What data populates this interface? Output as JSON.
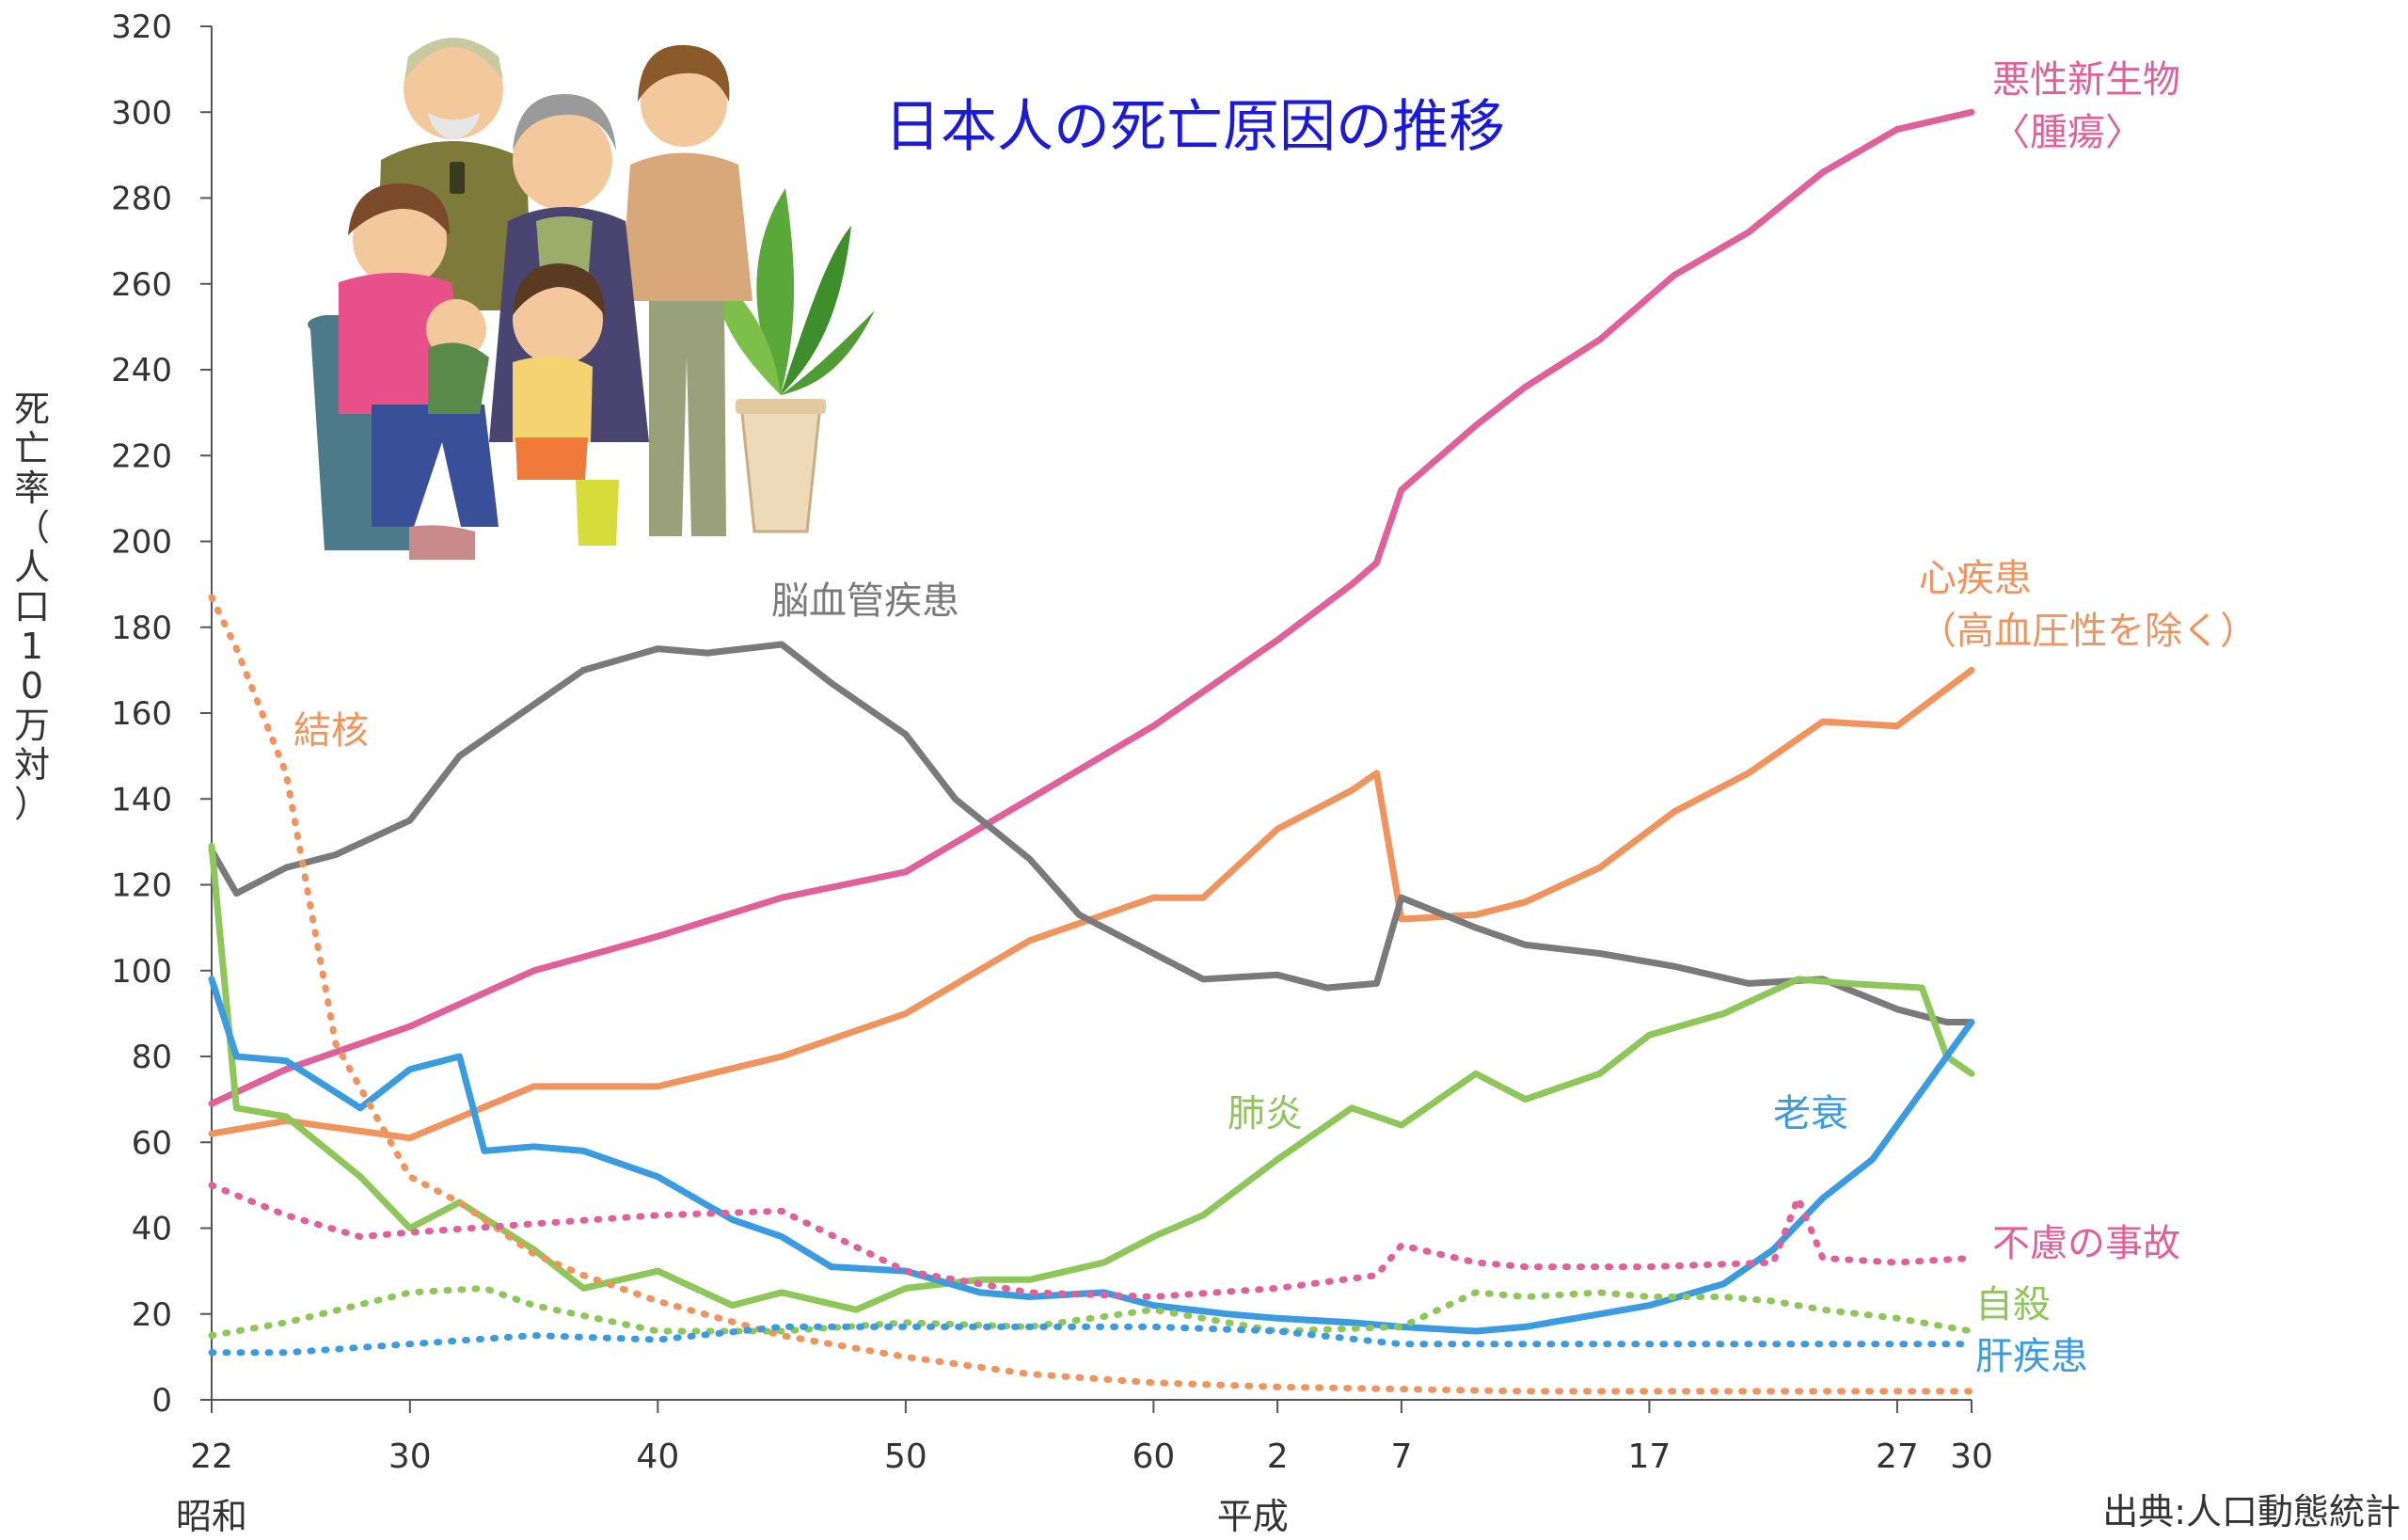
{
  "chart_data": {
    "type": "line",
    "title": "日本人の死亡原因の推移",
    "ylabel": "死亡率（人口10万対）",
    "source": "出典:人口動態統計",
    "ylim": [
      0,
      320
    ],
    "xlim": [
      1947,
      2018
    ],
    "grid": false,
    "legend": "inline labels at line ends",
    "y_ticks": [
      0,
      20,
      40,
      60,
      80,
      100,
      120,
      140,
      160,
      180,
      200,
      220,
      240,
      260,
      280,
      300,
      320
    ],
    "x_ticks": [
      {
        "label": "22",
        "year": 1947
      },
      {
        "label": "30",
        "year": 1955
      },
      {
        "label": "40",
        "year": 1965
      },
      {
        "label": "50",
        "year": 1975
      },
      {
        "label": "60",
        "year": 1985
      },
      {
        "label": "2",
        "year": 1990
      },
      {
        "label": "7",
        "year": 1995
      },
      {
        "label": "17",
        "year": 2005
      },
      {
        "label": "27",
        "year": 2015
      },
      {
        "label": "30",
        "year": 2018
      }
    ],
    "eras": [
      {
        "label": "昭和",
        "year": 1947
      },
      {
        "label": "平成",
        "year": 1989
      }
    ],
    "series": [
      {
        "name": "悪性新生物〈腫瘍〉",
        "label_lines": [
          "悪性新生物",
          "〈腫瘍〉"
        ],
        "color": "#e0609a",
        "dash": false,
        "x": [
          1947,
          1950,
          1955,
          1960,
          1965,
          1970,
          1975,
          1980,
          1985,
          1990,
          1993,
          1994,
          1995,
          1998,
          2000,
          2003,
          2006,
          2009,
          2012,
          2015,
          2018
        ],
        "y": [
          69,
          77,
          87,
          100,
          108,
          117,
          123,
          140,
          157,
          177,
          190,
          195,
          212,
          227,
          236,
          247,
          262,
          272,
          286,
          296,
          300
        ]
      },
      {
        "name": "心疾患（高血圧性を除く）",
        "label_lines": [
          "心疾患",
          "（高血圧性を除く）"
        ],
        "color": "#f0945e",
        "dash": false,
        "x": [
          1947,
          1950,
          1955,
          1960,
          1965,
          1970,
          1975,
          1980,
          1985,
          1987,
          1990,
          1993,
          1994,
          1995,
          1998,
          2000,
          2003,
          2006,
          2009,
          2012,
          2015,
          2018
        ],
        "y": [
          62,
          65,
          61,
          73,
          73,
          80,
          90,
          107,
          117,
          117,
          133,
          142,
          146,
          112,
          113,
          116,
          124,
          137,
          146,
          158,
          157,
          170
        ]
      },
      {
        "name": "脳血管疾患",
        "label_lines": [
          "脳血管疾患"
        ],
        "color": "#7a7a7a",
        "dash": false,
        "x": [
          1947,
          1948,
          1950,
          1952,
          1955,
          1957,
          1960,
          1962,
          1965,
          1967,
          1970,
          1972,
          1975,
          1977,
          1980,
          1982,
          1985,
          1987,
          1990,
          1992,
          1994,
          1995,
          1998,
          2000,
          2003,
          2006,
          2009,
          2012,
          2015,
          2017,
          2018
        ],
        "y": [
          128,
          118,
          124,
          127,
          135,
          150,
          162,
          170,
          175,
          174,
          176,
          167,
          155,
          140,
          126,
          113,
          104,
          98,
          99,
          96,
          97,
          117,
          110,
          106,
          104,
          101,
          97,
          98,
          91,
          88,
          88
        ]
      },
      {
        "name": "肺炎",
        "label_lines": [
          "肺炎"
        ],
        "color": "#8fc65a",
        "dash": false,
        "x": [
          1947,
          1948,
          1950,
          1953,
          1955,
          1957,
          1960,
          1962,
          1965,
          1968,
          1970,
          1973,
          1975,
          1978,
          1980,
          1983,
          1985,
          1987,
          1990,
          1993,
          1995,
          1998,
          2000,
          2003,
          2005,
          2008,
          2011,
          2013,
          2016,
          2017,
          2018
        ],
        "y": [
          129,
          68,
          66,
          52,
          40,
          46,
          35,
          26,
          30,
          22,
          25,
          21,
          26,
          28,
          28,
          32,
          38,
          43,
          56,
          68,
          64,
          76,
          70,
          76,
          85,
          90,
          98,
          97,
          96,
          80,
          76
        ]
      },
      {
        "name": "老衰",
        "label_lines": [
          "老衰"
        ],
        "color": "#3a9be0",
        "dash": false,
        "x": [
          1947,
          1948,
          1950,
          1953,
          1955,
          1957,
          1958,
          1960,
          1962,
          1965,
          1968,
          1970,
          1972,
          1975,
          1978,
          1980,
          1983,
          1985,
          1988,
          1990,
          1993,
          1995,
          1998,
          2000,
          2003,
          2005,
          2008,
          2010,
          2012,
          2014,
          2016,
          2018
        ],
        "y": [
          98,
          80,
          79,
          68,
          77,
          80,
          58,
          59,
          58,
          52,
          42,
          38,
          31,
          30,
          25,
          24,
          25,
          22,
          20,
          19,
          18,
          17,
          16,
          17,
          20,
          22,
          27,
          35,
          47,
          56,
          72,
          88
        ]
      },
      {
        "name": "結核",
        "label_lines": [
          "結核"
        ],
        "color": "#f0945e",
        "dash": true,
        "x": [
          1947,
          1948,
          1950,
          1952,
          1955,
          1957,
          1960,
          1962,
          1965,
          1970,
          1975,
          1980,
          1985,
          1990,
          2000,
          2010,
          2018
        ],
        "y": [
          187,
          175,
          146,
          83,
          52,
          46,
          34,
          29,
          23,
          15,
          10,
          6,
          4,
          3,
          2,
          2,
          2
        ]
      },
      {
        "name": "不慮の事故",
        "label_lines": [
          "不慮の事故"
        ],
        "color": "#e0609a",
        "dash": true,
        "x": [
          1947,
          1950,
          1953,
          1955,
          1960,
          1965,
          1970,
          1975,
          1980,
          1985,
          1990,
          1994,
          1995,
          1998,
          2000,
          2005,
          2010,
          2011,
          2012,
          2015,
          2018
        ],
        "y": [
          50,
          43,
          38,
          39,
          41,
          43,
          44,
          30,
          25,
          24,
          26,
          29,
          36,
          32,
          31,
          31,
          32,
          47,
          33,
          32,
          33
        ]
      },
      {
        "name": "自殺",
        "label_lines": [
          "自殺"
        ],
        "color": "#8fc65a",
        "dash": true,
        "x": [
          1947,
          1950,
          1955,
          1958,
          1960,
          1965,
          1970,
          1975,
          1980,
          1985,
          1990,
          1995,
          1998,
          2000,
          2003,
          2005,
          2008,
          2010,
          2012,
          2015,
          2018
        ],
        "y": [
          15,
          18,
          25,
          26,
          22,
          16,
          16,
          18,
          17,
          21,
          16,
          17,
          25,
          24,
          25,
          24,
          24,
          23,
          21,
          19,
          16
        ]
      },
      {
        "name": "肝疾患",
        "label_lines": [
          "肝疾患"
        ],
        "color": "#3a9be0",
        "dash": true,
        "x": [
          1947,
          1950,
          1955,
          1960,
          1965,
          1970,
          1975,
          1980,
          1985,
          1990,
          1995,
          2000,
          2005,
          2010,
          2015,
          2018
        ],
        "y": [
          11,
          11,
          13,
          15,
          14,
          17,
          17,
          17,
          17,
          16,
          13,
          13,
          13,
          13,
          13,
          13
        ]
      }
    ]
  }
}
